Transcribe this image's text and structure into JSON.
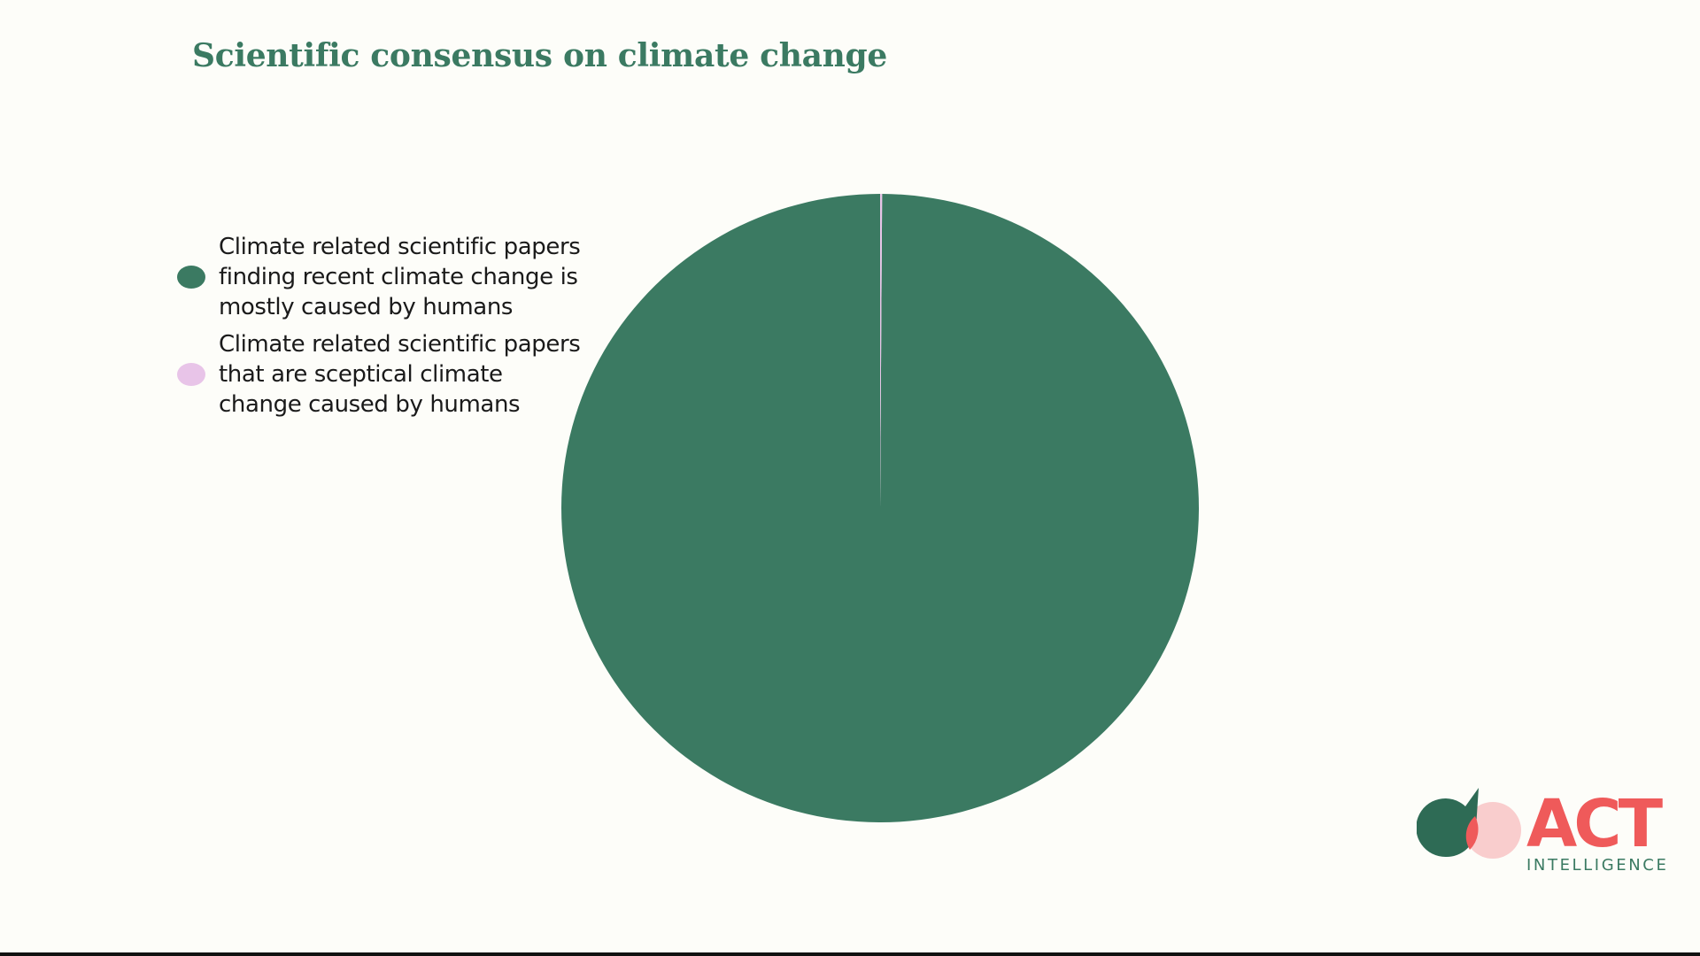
{
  "slide": {
    "title": "Scientific consensus on climate change"
  },
  "chart_data": {
    "type": "pie",
    "title": "Scientific consensus on climate change",
    "legend_position": "left",
    "slices": [
      {
        "label": "Climate related scientific papers finding recent climate change is mostly caused by humans",
        "value": 99.9,
        "color": "#3b7a62"
      },
      {
        "label": "Climate related scientific papers that are sceptical climate change caused by humans",
        "value": 0.1,
        "color": "#e8c4e8"
      }
    ]
  },
  "logo": {
    "word": "ACT",
    "sub": "INTELLIGENCE",
    "colors": {
      "green": "#2e6b55",
      "red": "#ef5a5a",
      "pink": "#f9cdcd"
    },
    "icon": "leaf-circles-icon"
  },
  "colors": {
    "background": "#fdfdf9",
    "accent": "#3b7a62",
    "text": "#1a1a1a"
  }
}
